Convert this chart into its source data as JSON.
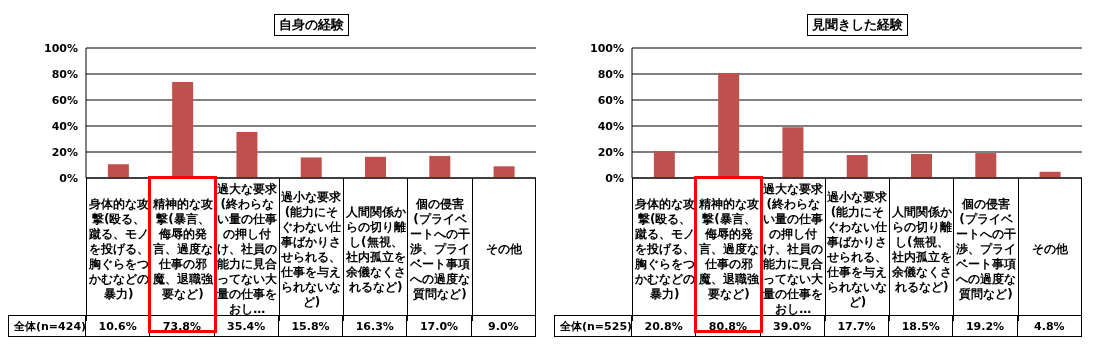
{
  "chart_data": [
    {
      "type": "bar",
      "title": "自身の経験",
      "categories": [
        "身体的な攻撃(殴る、蹴る、モノを投げる、胸ぐらをつかむなどの暴力)",
        "精神的な攻撃(暴言、侮辱的発言、過度な仕事の邪魔、退職強要など)",
        "過大な要求(終わらない量の仕事の押し付け、社員の能力に見合ってない大量の仕事をおし…",
        "過小な要求(能力にそぐわない仕事ばかりさせられる、仕事を与えられないなど)",
        "人間関係からの切り離し(無視、社内孤立を余儀なくされるなど)",
        "個の侵害(プライベートへの干渉、プライベート事項への過度な質問など)",
        "その他"
      ],
      "series": [
        {
          "name": "全体(n=424)",
          "color": "#c0504d",
          "values": [
            10.6,
            73.8,
            35.4,
            15.8,
            16.3,
            17.0,
            9.0
          ],
          "value_labels": [
            "10.6%",
            "73.8%",
            "35.4%",
            "15.8%",
            "16.3%",
            "17.0%",
            "9.0%"
          ]
        }
      ],
      "ylim": [
        0,
        100
      ],
      "yticks": [
        {
          "value": 0,
          "label": "0%"
        },
        {
          "value": 20,
          "label": "20%"
        },
        {
          "value": 40,
          "label": "40%"
        },
        {
          "value": 60,
          "label": "60%"
        },
        {
          "value": 80,
          "label": "80%"
        },
        {
          "value": 100,
          "label": "100%"
        }
      ],
      "grid": "y",
      "legend": "bottom left"
    },
    {
      "type": "bar",
      "title": "見聞きした経験",
      "categories": [
        "身体的な攻撃(殴る、蹴る、モノを投げる、胸ぐらをつかむなどの暴力)",
        "精神的な攻撃(暴言、侮辱的発言、過度な仕事の邪魔、退職強要など)",
        "過大な要求(終わらない量の仕事の押し付け、社員の能力に見合ってない大量の仕事をおし…",
        "過小な要求(能力にそぐわない仕事ばかりさせられる、仕事を与えられないなど)",
        "人間関係からの切り離し(無視、社内孤立を余儀なくされるなど)",
        "個の侵害(プライベートへの干渉、プライベート事項への過度な質問など)",
        "その他"
      ],
      "series": [
        {
          "name": "全体(n=525)",
          "color": "#c0504d",
          "values": [
            20.8,
            80.8,
            39.0,
            17.7,
            18.5,
            19.2,
            4.8
          ],
          "value_labels": [
            "20.8%",
            "80.8%",
            "39.0%",
            "17.7%",
            "18.5%",
            "19.2%",
            "4.8%"
          ]
        }
      ],
      "ylim": [
        0,
        100
      ],
      "yticks": [
        {
          "value": 0,
          "label": "0%"
        },
        {
          "value": 20,
          "label": "20%"
        },
        {
          "value": 40,
          "label": "40%"
        },
        {
          "value": 60,
          "label": "60%"
        },
        {
          "value": 80,
          "label": "80%"
        },
        {
          "value": 100,
          "label": "100%"
        }
      ],
      "grid": "y",
      "legend": "bottom left"
    }
  ]
}
